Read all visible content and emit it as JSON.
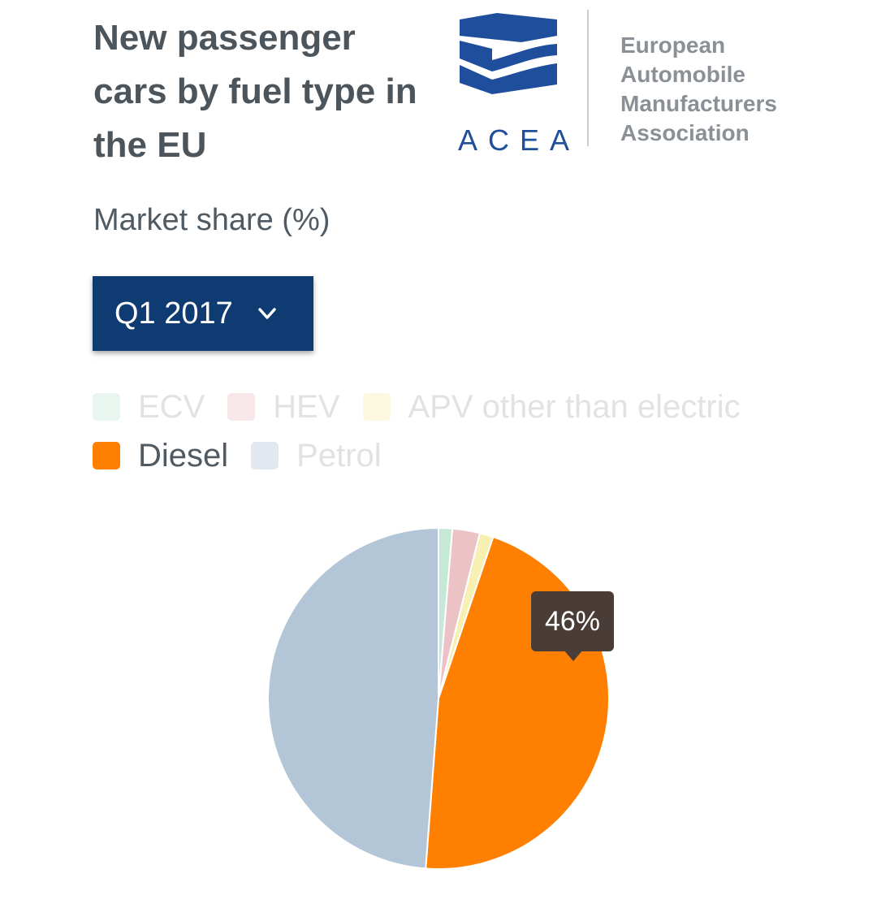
{
  "header": {
    "title": "New passenger cars by fuel type in the EU",
    "subtitle": "Market share (%)"
  },
  "logo": {
    "acronym": "ACEA",
    "name_lines": [
      "European",
      "Automobile",
      "Manufacturers",
      "Association"
    ],
    "brand_color": "#1f4e9c"
  },
  "period_select": {
    "selected": "Q1 2017",
    "icon": "chevron-down-icon",
    "background": "#0d3b72"
  },
  "tooltip": {
    "text": "46%"
  },
  "chart_data": {
    "type": "pie",
    "title": "New passenger cars by fuel type in the EU",
    "subtitle": "Market share (%)",
    "period": "Q1 2017",
    "legend_position": "top-left",
    "series": [
      {
        "name": "ECV",
        "value": 1.3,
        "color": "#c6e8d6",
        "highlighted": false
      },
      {
        "name": "HEV",
        "value": 2.6,
        "color": "#ebc3c6",
        "highlighted": false
      },
      {
        "name": "APV other than electric",
        "value": 1.3,
        "color": "#f8efb2",
        "highlighted": false
      },
      {
        "name": "Diesel",
        "value": 46,
        "color": "#ff7f00",
        "highlighted": true
      },
      {
        "name": "Petrol",
        "value": 48.8,
        "color": "#b3c6d7",
        "highlighted": false
      }
    ],
    "data_labels": [
      {
        "series": "Diesel",
        "label": "46%"
      }
    ]
  }
}
